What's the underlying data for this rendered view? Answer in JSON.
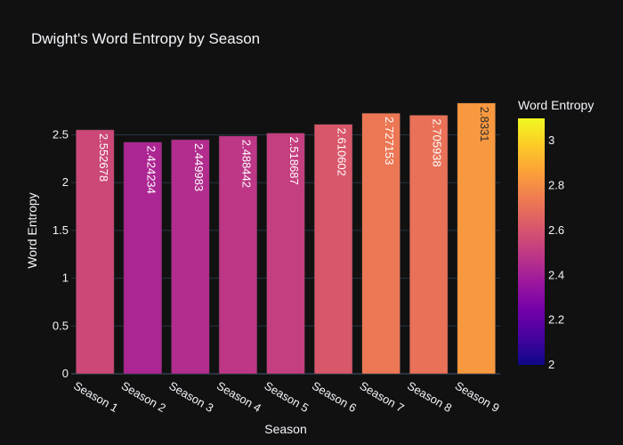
{
  "chart_data": {
    "type": "bar",
    "title": "Dwight's Word Entropy by Season",
    "xlabel": "Season",
    "ylabel": "Word Entropy",
    "categories": [
      "Season 1",
      "Season 2",
      "Season 3",
      "Season 4",
      "Season 5",
      "Season 6",
      "Season 7",
      "Season 8",
      "Season 9"
    ],
    "values": [
      2.552678,
      2.424234,
      2.449983,
      2.488442,
      2.518687,
      2.610602,
      2.727153,
      2.705938,
      2.8331
    ],
    "value_labels": [
      "2.552678",
      "2.424234",
      "2.449983",
      "2.488442",
      "2.518687",
      "2.610602",
      "2.727153",
      "2.705938",
      "2.8331"
    ],
    "ylim": [
      0,
      2.98
    ],
    "y_ticks": [
      0,
      0.5,
      1,
      1.5,
      2,
      2.5
    ],
    "y_tick_labels": [
      "0",
      "0.5",
      "1",
      "1.5",
      "2",
      "2.5"
    ],
    "colorbar": {
      "title": "Word Entropy",
      "range": [
        2,
        3.1
      ],
      "ticks": [
        2,
        2.2,
        2.4,
        2.6,
        2.8,
        3
      ],
      "tick_labels": [
        "2",
        "2.2",
        "2.4",
        "2.6",
        "2.8",
        "3"
      ],
      "colorscale": [
        "#0d0887",
        "#46039f",
        "#7201a8",
        "#9c179e",
        "#bd3786",
        "#d8576b",
        "#ed7953",
        "#fb9f3a",
        "#fdca26",
        "#f0f921"
      ]
    },
    "grid": true,
    "legend": "colorbar-right",
    "colors": {
      "background": "#111111",
      "grid": "#283442",
      "text": "#f2f5fa"
    }
  }
}
